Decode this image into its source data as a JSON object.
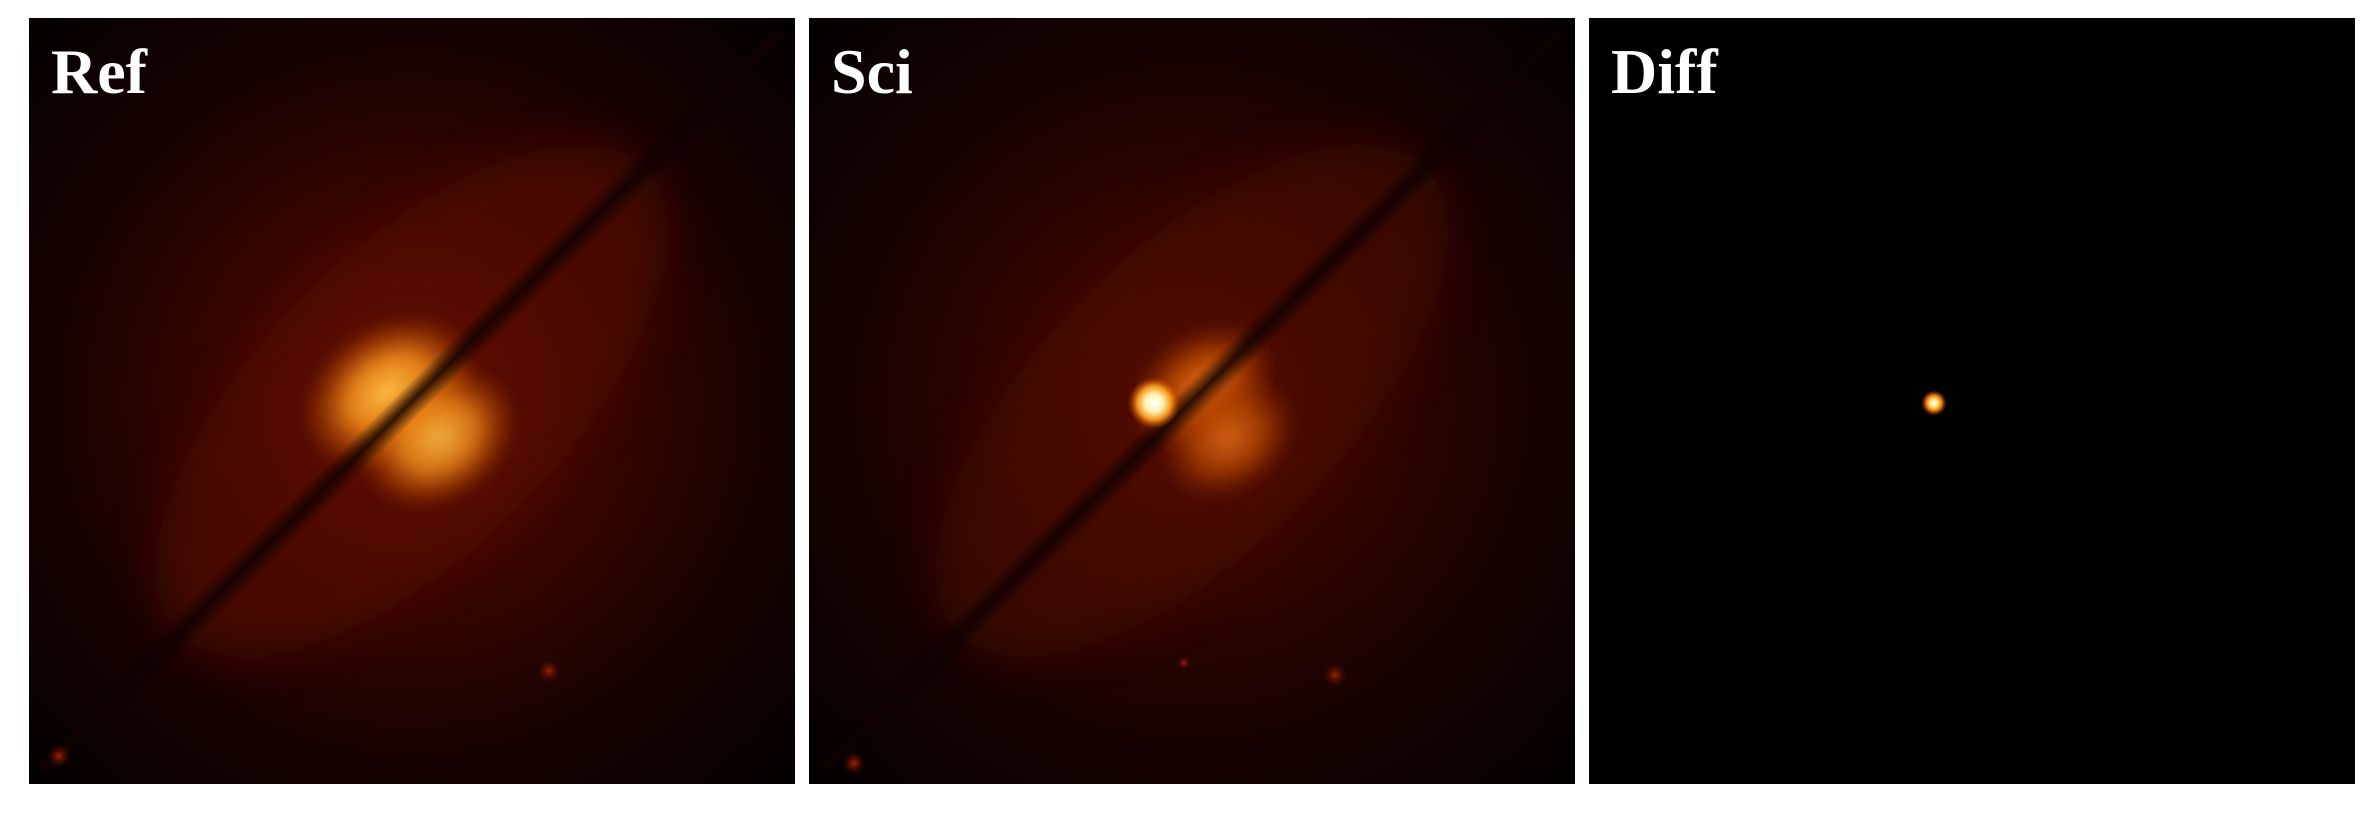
{
  "panels": [
    {
      "label": "Ref"
    },
    {
      "label": "Sci"
    },
    {
      "label": "Diff"
    }
  ],
  "colormap": [
    "#000000",
    "#3a0500",
    "#8a1a00",
    "#d45a00",
    "#ff9a1a",
    "#ffe8a0",
    "#ffffff"
  ]
}
